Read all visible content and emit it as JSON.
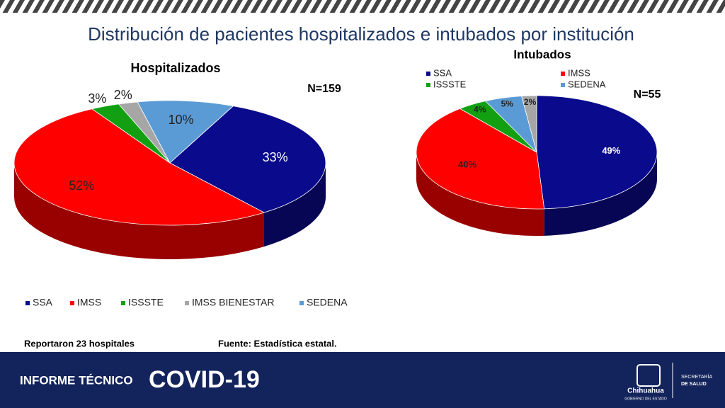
{
  "title": "Distribución de pacientes hospitalizados e intubados por institución",
  "chart_data": [
    {
      "type": "pie3d",
      "title": "Hospitalizados",
      "annotation": "N=159",
      "categories": [
        "SSA",
        "IMSS",
        "ISSSTE",
        "IMSS BIENESTAR",
        "SEDENA"
      ],
      "values": [
        33,
        52,
        3,
        2,
        10
      ],
      "value_labels": [
        "33%",
        "52%",
        "3%",
        "2%",
        "10%"
      ],
      "colors": [
        "#0a0a8c",
        "#ff0000",
        "#12a012",
        "#a6a6a6",
        "#5b9bd5"
      ],
      "legend": "bottom"
    },
    {
      "type": "pie3d",
      "title": "Intubados",
      "annotation": "N=55",
      "categories": [
        "SSA",
        "IMSS",
        "ISSSTE",
        "SEDENA",
        null
      ],
      "values": [
        49,
        40,
        4,
        5,
        2
      ],
      "value_labels": [
        "49%",
        "40%",
        "4%",
        "5%",
        "2%"
      ],
      "colors": [
        "#0a0a8c",
        "#ff0000",
        "#12a012",
        "#5b9bd5",
        "#a6a6a6"
      ],
      "legend": "top"
    }
  ],
  "notes": {
    "hospitals": "Reportaron 23 hospitales",
    "source": "Fuente: Estadística estatal."
  },
  "footer": {
    "report": "INFORME TÉCNICO",
    "topic": "COVID-19",
    "state": "Chihuahua",
    "government": "GOBIERNO DEL ESTADO",
    "ministry1": "SECRETARÍA",
    "ministry2": "DE SALUD"
  }
}
